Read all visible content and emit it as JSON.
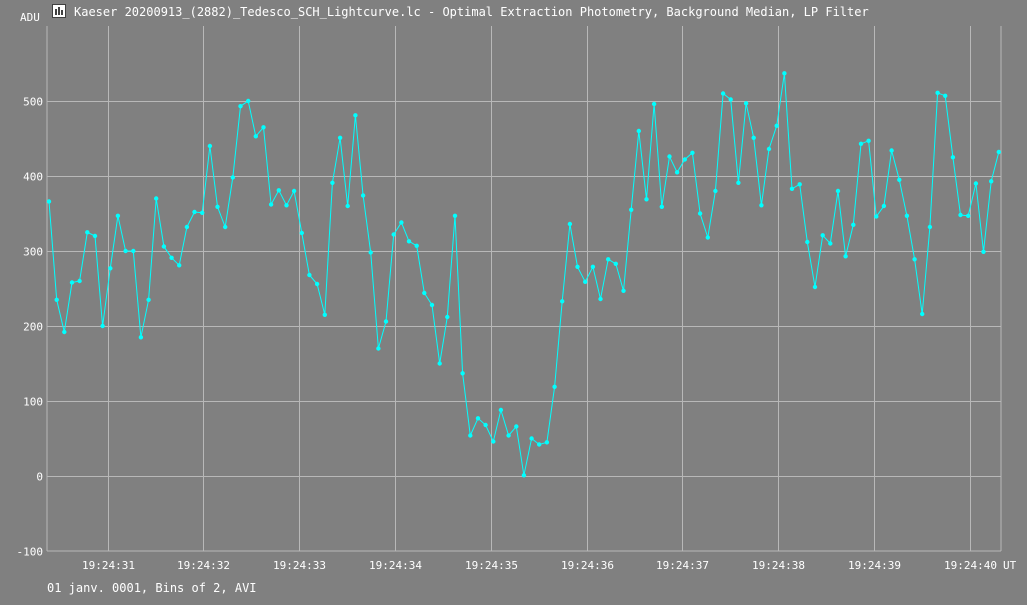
{
  "window": {
    "title": "Kaeser 20200913_(2882)_Tedesco_SCH_Lightcurve.lc - Optimal Extraction Photometry, Background Median, LP Filter",
    "footer": "01 janv. 0001, Bins of 2, AVI"
  },
  "colors": {
    "background": "#808080",
    "grid": "#b8b8b8",
    "series": "#00ffff",
    "text": "#ffffff"
  },
  "chart_data": {
    "type": "line",
    "title": "Kaeser 20200913_(2882)_Tedesco_SCH_Lightcurve.lc - Optimal Extraction Photometry, Background Median, LP Filter",
    "ylabel": "ADU",
    "xunit": "UT",
    "ylim": [
      -100,
      600
    ],
    "yticks": [
      -100,
      0,
      100,
      200,
      300,
      400,
      500
    ],
    "xticks": [
      "19:24:31",
      "19:24:32",
      "19:24:33",
      "19:24:34",
      "19:24:35",
      "19:24:36",
      "19:24:37",
      "19:24:38",
      "19:24:39",
      "19:24:40"
    ],
    "grid": true,
    "series": [
      {
        "values": [
          366,
          235,
          192,
          258,
          260,
          325,
          320,
          200,
          277,
          347,
          300,
          300,
          185,
          235,
          370,
          306,
          291,
          281,
          332,
          352,
          351,
          440,
          359,
          332,
          398,
          493,
          500,
          453,
          465,
          362,
          381,
          361,
          380,
          324,
          268,
          256,
          215,
          391,
          451,
          360,
          481,
          374,
          298,
          170,
          206,
          322,
          338,
          313,
          307,
          244,
          228,
          150,
          212,
          347,
          137,
          54,
          77,
          68,
          46,
          88,
          54,
          66,
          1,
          50,
          42,
          45,
          119,
          233,
          336,
          279,
          259,
          279,
          236,
          289,
          283,
          247,
          355,
          460,
          369,
          496,
          359,
          426,
          405,
          422,
          431,
          350,
          318,
          380,
          510,
          502,
          391,
          497,
          451,
          361,
          436,
          467,
          537,
          383,
          389,
          312,
          252,
          321,
          310,
          380,
          293,
          335,
          443,
          447,
          346,
          360,
          434,
          395,
          347,
          289,
          216,
          332,
          511,
          507,
          425,
          348,
          347,
          390,
          299,
          393,
          432
        ]
      }
    ]
  }
}
